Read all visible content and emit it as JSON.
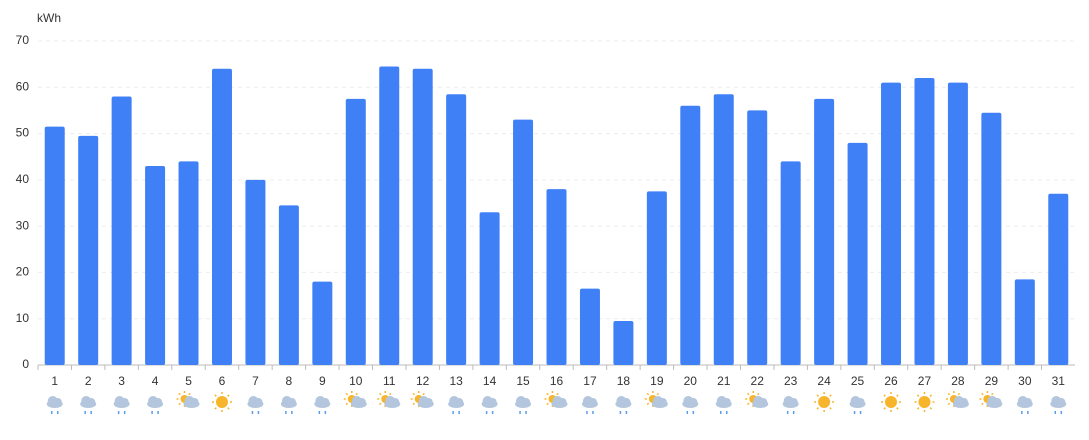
{
  "chart_data": {
    "type": "bar",
    "y_label": "kWh",
    "categories": [
      "1",
      "2",
      "3",
      "4",
      "5",
      "6",
      "7",
      "8",
      "9",
      "10",
      "11",
      "12",
      "13",
      "14",
      "15",
      "16",
      "17",
      "18",
      "19",
      "20",
      "21",
      "22",
      "23",
      "24",
      "25",
      "26",
      "27",
      "28",
      "29",
      "30",
      "31"
    ],
    "values": [
      51.5,
      49.5,
      58,
      43,
      44,
      64,
      40,
      34.5,
      18,
      57.5,
      64.5,
      64,
      58.5,
      33,
      53,
      38,
      16.5,
      9.5,
      37.5,
      56,
      58.5,
      55,
      44,
      57.5,
      48,
      61,
      62,
      61,
      54.5,
      18.5,
      37
    ],
    "color": "#4080f7",
    "ylim": [
      0,
      70
    ],
    "yticks": [
      0,
      10,
      20,
      30,
      40,
      50,
      60,
      70
    ],
    "grid": true
  }
}
